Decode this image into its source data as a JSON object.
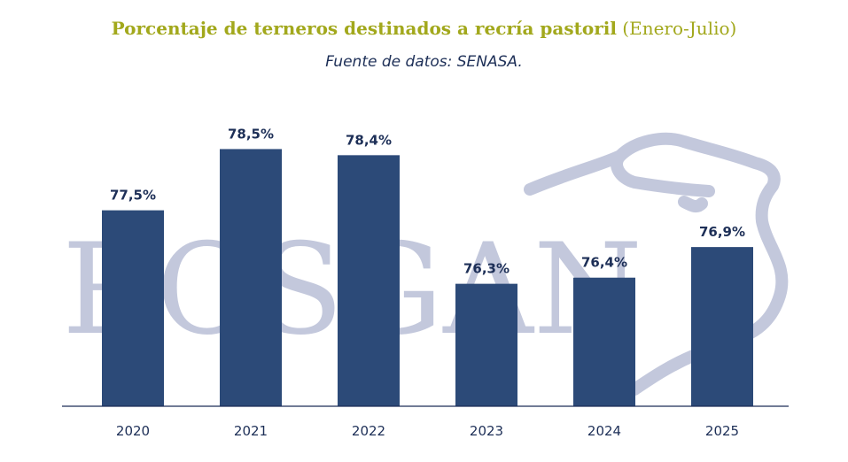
{
  "title": {
    "main": "Porcentaje de terneros destinados a recría pastoril",
    "period": "(Enero-Julio)"
  },
  "subtitle": "Fuente de datos: SENASA.",
  "watermark": {
    "text": "ROSGAN",
    "color": "#c3c8dc",
    "icon": "cow-head-outline"
  },
  "colors": {
    "bar": "#2c4a78",
    "label": "#1d2f57",
    "title": "#a2a81c",
    "axis": "#1d2f57"
  },
  "chart_data": {
    "type": "bar",
    "categories": [
      "2020",
      "2021",
      "2022",
      "2023",
      "2024",
      "2025"
    ],
    "values": [
      77.5,
      78.5,
      78.4,
      76.3,
      76.4,
      76.9
    ],
    "data_labels": [
      "77,5%",
      "78,5%",
      "78,4%",
      "76,3%",
      "76,4%",
      "76,9%"
    ],
    "ylim": [
      74.3,
      79.2
    ],
    "grid": false,
    "legend": "none"
  }
}
